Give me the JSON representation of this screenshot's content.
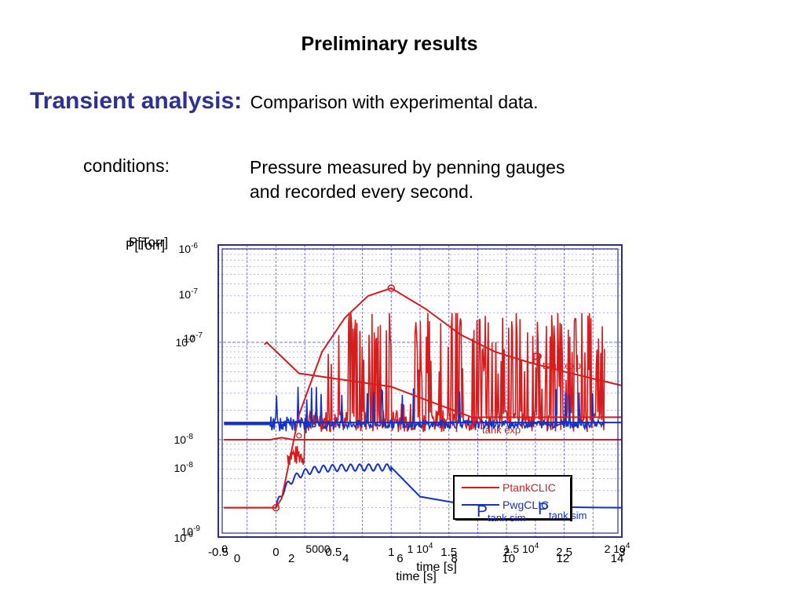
{
  "slide": {
    "title": "Preliminary results",
    "heading": "Transient analysis:",
    "subheading": "Comparison with experimental data.",
    "conditions_label": "conditions:",
    "conditions_lines": [
      "Pressure measured by penning gauges",
      "and recorded every second."
    ]
  },
  "chart_data": {
    "type": "line",
    "ylabel": "P[Torr]",
    "xlabel": "time [s]",
    "y_scale": "log",
    "ylim": [
      1e-09,
      1e-06
    ],
    "xlim": [
      -0.5,
      3
    ],
    "x_tick_labels_bottom": [
      "-0.5",
      "0",
      "0.5",
      "1",
      "1.5",
      "2",
      "2.5",
      "3"
    ],
    "x_tick_labels_row2": [
      "0",
      "2",
      "4",
      "6",
      "8",
      "10",
      "12",
      "14"
    ],
    "x_tick_labels_top": [
      "0",
      "5000",
      "1 10^4",
      "1.5 10^4",
      "2 10^4"
    ],
    "y_tick_labels": [
      "10^-6",
      "10^-7",
      "10^-7",
      "10^-8",
      "10^-8",
      "10^-9"
    ],
    "grid": true,
    "legend_box_entries": [
      "PtankCLIC",
      "PwgCLIC"
    ],
    "annotations": [
      "P_tank exp",
      "P_tank sim",
      "P_tank exp",
      "P_tank sim"
    ],
    "colors": {
      "red": "#d61c1c",
      "blue": "#1431c8",
      "axis": "#2b2b9a",
      "grid": "#5a5ad8",
      "heading": "#2e3192"
    },
    "series": [
      {
        "name": "PtankCLIC",
        "color": "#d61c1c",
        "x": [
          -0.45,
          0.0,
          0.05,
          0.2,
          0.4,
          0.6,
          0.8,
          1.0,
          1.3,
          1.6,
          1.9,
          2.2,
          2.5,
          2.8,
          3.0
        ],
        "y": [
          2e-09,
          2e-09,
          2.5e-09,
          1.8e-08,
          8e-08,
          1.8e-07,
          3e-07,
          3.6e-07,
          2.2e-07,
          1.2e-07,
          8e-08,
          6.2e-08,
          5e-08,
          4.1e-08,
          3.6e-08
        ]
      },
      {
        "name": "PwgCLIC",
        "color": "#1431c8",
        "x": [
          -0.45,
          0.0,
          0.05,
          0.2,
          0.4,
          0.6,
          0.8,
          1.0,
          1.1,
          1.2,
          1.35,
          1.5,
          1.8,
          2.2,
          2.6,
          3.0
        ],
        "y": [
          1.5e-08,
          1.5e-08,
          1.5e-08,
          1.5e-08,
          1.5e-08,
          1.5e-08,
          1.5e-08,
          1.5e-08,
          1.5e-08,
          1.5e-08,
          1.5e-08,
          1.5e-08,
          1.5e-08,
          1.5e-08,
          1.5e-08,
          1.5e-08
        ]
      }
    ]
  }
}
